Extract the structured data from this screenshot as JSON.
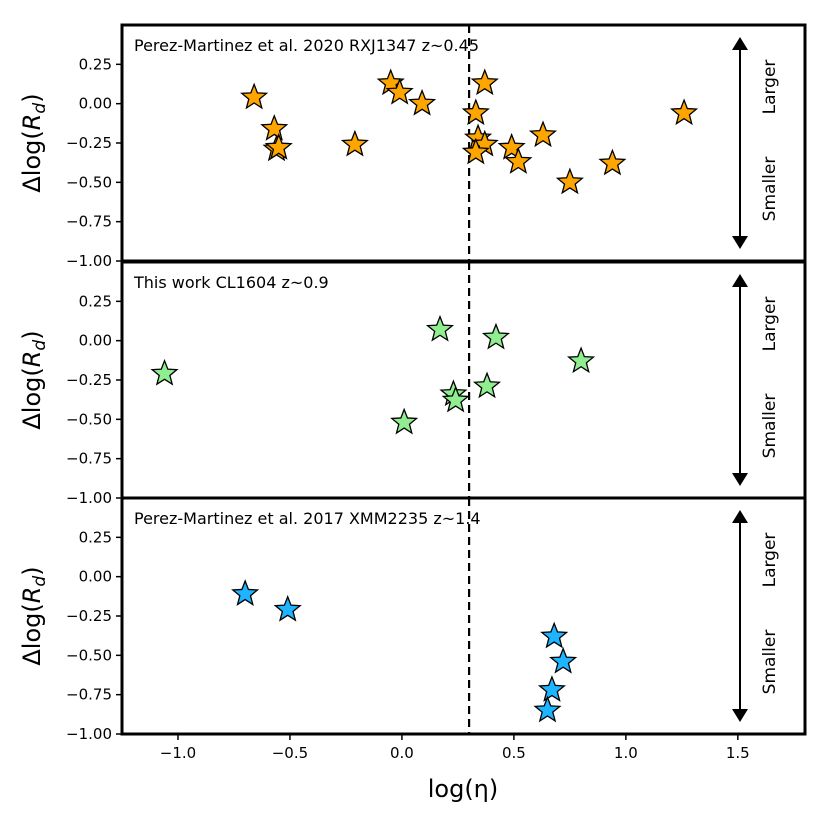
{
  "chart_data": {
    "type": "scatter",
    "shared_x": {
      "label": "log(η)",
      "xlim": [
        -1.25,
        1.8
      ],
      "ticks": [
        -1.0,
        -0.5,
        0.0,
        0.5,
        1.0,
        1.5
      ],
      "tick_labels": [
        "−1.0",
        "−0.5",
        "0.0",
        "0.5",
        "1.0",
        "1.5"
      ]
    },
    "reference_line_x": 0.3,
    "arrow_labels": {
      "up": "Larger",
      "down": "Smaller"
    },
    "panels": [
      {
        "title": "Perez-Martinez et al. 2020 RXJ1347 z~0.45",
        "ylabel": "Δlog(R_d)",
        "ylim": [
          -1.0,
          0.5
        ],
        "yticks": [
          0.25,
          0.0,
          -0.25,
          -0.5,
          -0.75,
          -1.0
        ],
        "ytick_labels": [
          "0.25",
          "0.00",
          "−0.25",
          "−0.50",
          "−0.75",
          "−1.00"
        ],
        "color": "#FFA500",
        "x": [
          -0.66,
          -0.57,
          -0.56,
          -0.55,
          -0.21,
          -0.05,
          -0.01,
          0.09,
          0.33,
          0.37,
          0.34,
          0.37,
          0.33,
          0.49,
          0.52,
          0.63,
          0.75,
          0.94,
          1.26
        ],
        "y": [
          0.04,
          -0.16,
          -0.29,
          -0.28,
          -0.26,
          0.13,
          0.07,
          0.0,
          -0.06,
          0.13,
          -0.22,
          -0.26,
          -0.31,
          -0.28,
          -0.37,
          -0.2,
          -0.5,
          -0.38,
          -0.06
        ]
      },
      {
        "title": "This work CL1604 z~0.9",
        "ylabel": "Δlog(R_d)",
        "ylim": [
          -1.0,
          0.5
        ],
        "yticks": [
          0.25,
          0.0,
          -0.25,
          -0.5,
          -0.75,
          -1.0
        ],
        "ytick_labels": [
          "0.25",
          "0.00",
          "−0.25",
          "−0.50",
          "−0.75",
          "−1.00"
        ],
        "color": "#90EE90",
        "x": [
          -1.06,
          0.01,
          0.17,
          0.23,
          0.24,
          0.38,
          0.42,
          0.8
        ],
        "y": [
          -0.21,
          -0.52,
          0.07,
          -0.34,
          -0.38,
          -0.29,
          0.02,
          -0.13
        ]
      },
      {
        "title": "Perez-Martinez et al. 2017 XMM2235 z~1.4",
        "ylabel": "Δlog(R_d)",
        "ylim": [
          -1.0,
          0.5
        ],
        "yticks": [
          0.25,
          0.0,
          -0.25,
          -0.5,
          -0.75,
          -1.0
        ],
        "ytick_labels": [
          "0.25",
          "0.00",
          "−0.25",
          "−0.50",
          "−0.75",
          "−1.00"
        ],
        "color": "#1EB4FF",
        "x": [
          -0.7,
          -0.51,
          0.68,
          0.72,
          0.67,
          0.65
        ],
        "y": [
          -0.11,
          -0.21,
          -0.38,
          -0.54,
          -0.72,
          -0.85
        ]
      }
    ]
  }
}
